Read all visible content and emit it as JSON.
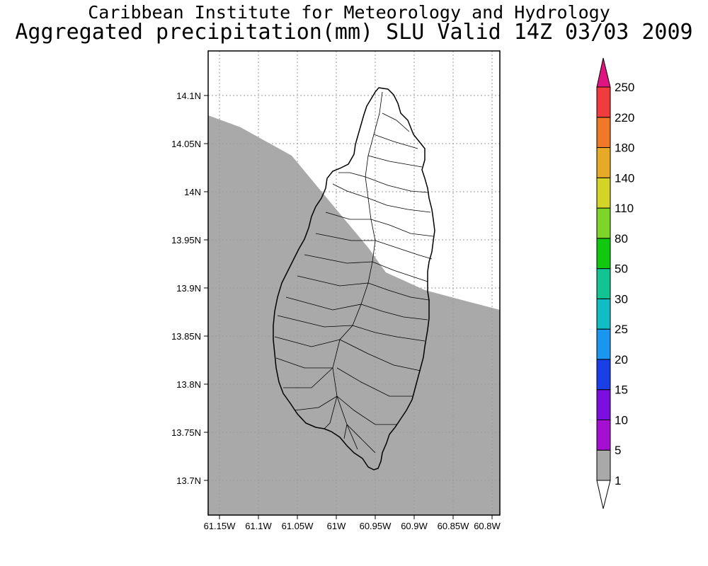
{
  "header": {
    "institution": "Caribbean Institute for Meteorology and Hydrology",
    "title": "Aggregated precipitation(mm) SLU Valid 14Z 03/03 2009"
  },
  "map": {
    "lat_ticks": [
      "14.1N",
      "14.05N",
      "14N",
      "13.95N",
      "13.9N",
      "13.85N",
      "13.8N",
      "13.75N",
      "13.7N"
    ],
    "lon_ticks": [
      "61.15W",
      "61.1W",
      "61.05W",
      "61W",
      "60.95W",
      "60.9W",
      "60.85W",
      "60.8W"
    ],
    "shaded_class": "1–5",
    "shade_color": "#a9a9a9"
  },
  "colorbar": {
    "levels": [
      "1",
      "5",
      "10",
      "15",
      "20",
      "25",
      "30",
      "50",
      "80",
      "110",
      "140",
      "180",
      "220",
      "250"
    ],
    "colors": [
      "#a9a9a9",
      "#a50fd1",
      "#7a0fe0",
      "#1a3fe6",
      "#1a96f0",
      "#12bcc4",
      "#12c492",
      "#0fc80f",
      "#7ed428",
      "#d4d428",
      "#e6aa28",
      "#f07828",
      "#f03c3c",
      "#e01480"
    ]
  }
}
